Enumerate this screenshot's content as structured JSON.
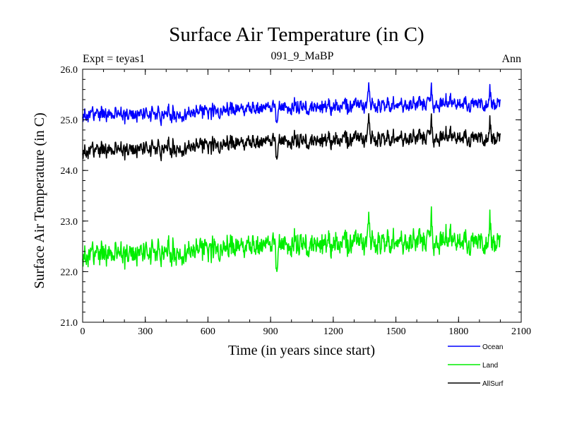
{
  "chart_data": {
    "type": "line",
    "title": "Surface Air Temperature (in C)",
    "subtitle_left": "Expt = teyas1",
    "subtitle_center": "091_9_MaBP",
    "subtitle_right": "Ann",
    "xlabel": "Time (in years since start)",
    "ylabel": "Surface Air Temperature (in C)",
    "xlim": [
      0,
      2100
    ],
    "ylim": [
      21.0,
      26.0
    ],
    "xticks": [
      0,
      300,
      600,
      900,
      1200,
      1500,
      1800,
      2100
    ],
    "xtick_labels": [
      "0",
      "300",
      "600",
      "900",
      "1200",
      "1500",
      "1800",
      "2100"
    ],
    "yticks": [
      21.0,
      22.0,
      23.0,
      24.0,
      25.0,
      26.0
    ],
    "ytick_labels": [
      "21.0",
      "22.0",
      "23.0",
      "24.0",
      "25.0",
      "26.0"
    ],
    "legend_position": "bottom-right, below plot",
    "series_x_range": [
      0,
      2000
    ],
    "series": [
      {
        "name": "Ocean",
        "color": "#0000ff",
        "trend": [
          [
            0,
            25.1
          ],
          [
            400,
            25.12
          ],
          [
            800,
            25.22
          ],
          [
            1200,
            25.26
          ],
          [
            1600,
            25.32
          ],
          [
            2000,
            25.3
          ]
        ],
        "noise": 0.11,
        "spikes": [
          [
            375,
            -0.3
          ],
          [
            930,
            -0.25
          ],
          [
            1370,
            0.45
          ],
          [
            1670,
            0.4
          ],
          [
            1950,
            0.3
          ]
        ]
      },
      {
        "name": "Land",
        "color": "#00ee00",
        "trend": [
          [
            0,
            22.32
          ],
          [
            400,
            22.4
          ],
          [
            800,
            22.5
          ],
          [
            1200,
            22.55
          ],
          [
            1600,
            22.62
          ],
          [
            2000,
            22.55
          ]
        ],
        "noise": 0.18,
        "spikes": [
          [
            375,
            -0.4
          ],
          [
            930,
            -0.45
          ],
          [
            1370,
            0.6
          ],
          [
            1670,
            0.65
          ],
          [
            1950,
            0.5
          ]
        ]
      },
      {
        "name": "AllSurf",
        "color": "#000000",
        "trend": [
          [
            0,
            24.38
          ],
          [
            400,
            24.45
          ],
          [
            800,
            24.55
          ],
          [
            1200,
            24.6
          ],
          [
            1600,
            24.66
          ],
          [
            2000,
            24.62
          ]
        ],
        "noise": 0.12,
        "spikes": [
          [
            375,
            -0.33
          ],
          [
            930,
            -0.3
          ],
          [
            1370,
            0.5
          ],
          [
            1670,
            0.45
          ],
          [
            1950,
            0.35
          ]
        ]
      }
    ]
  }
}
